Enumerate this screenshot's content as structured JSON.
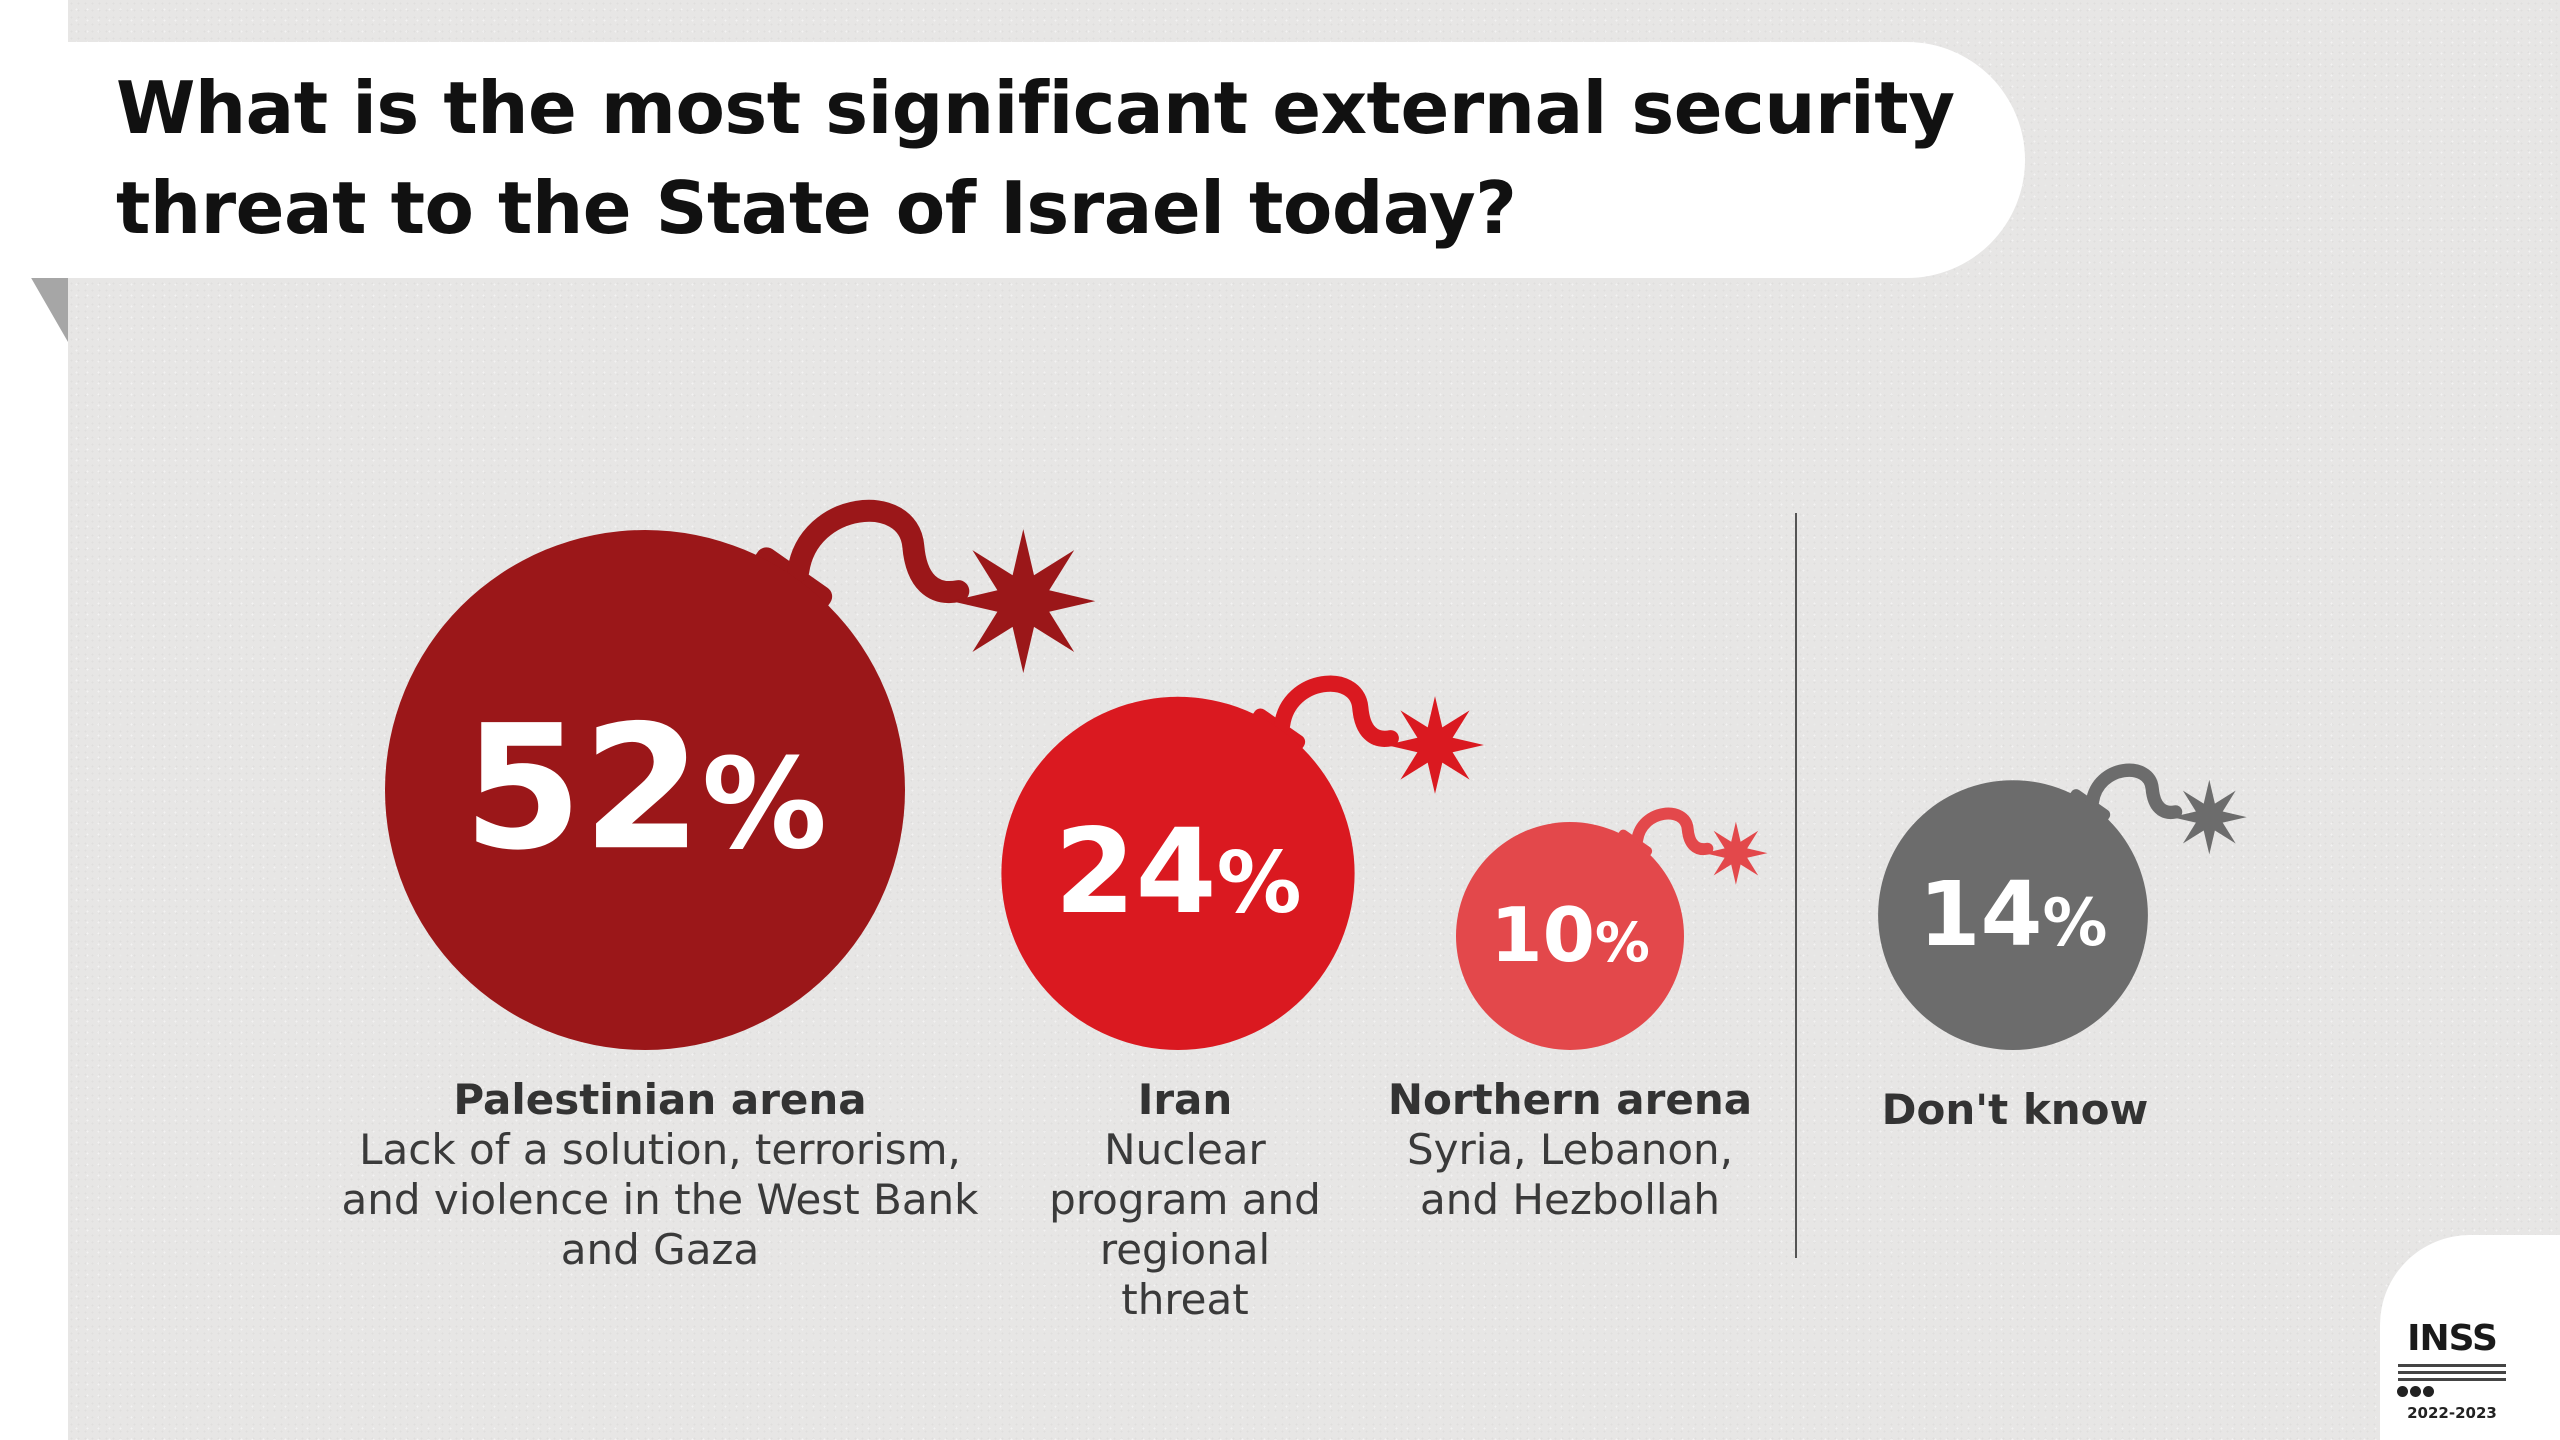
{
  "title": "What is the most significant external security threat to the State of Israel today?",
  "chart_data": {
    "type": "bar",
    "categories": [
      "Palestinian arena",
      "Iran",
      "Northern arena",
      "Don't know"
    ],
    "series": [
      {
        "values": [
          52,
          24,
          10,
          14
        ]
      }
    ],
    "value_labels": [
      "52%",
      "24%",
      "10%",
      "14%"
    ],
    "unit": "%",
    "colors": [
      "#9b1719",
      "#da1920",
      "#e3484b",
      "#6c6c6c"
    ]
  },
  "labels": [
    {
      "head": "Palestinian arena",
      "sub": "Lack of a solution, terrorism, and violence in the West Bank and Gaza"
    },
    {
      "head": "Iran",
      "sub": "Nuclear program and regional threat"
    },
    {
      "head": "Northern arena",
      "sub": "Syria, Lebanon, and Hezbollah"
    },
    {
      "head": "Don't know",
      "sub": ""
    }
  ],
  "logo": {
    "name": "INSS",
    "year": "2022-2023"
  }
}
